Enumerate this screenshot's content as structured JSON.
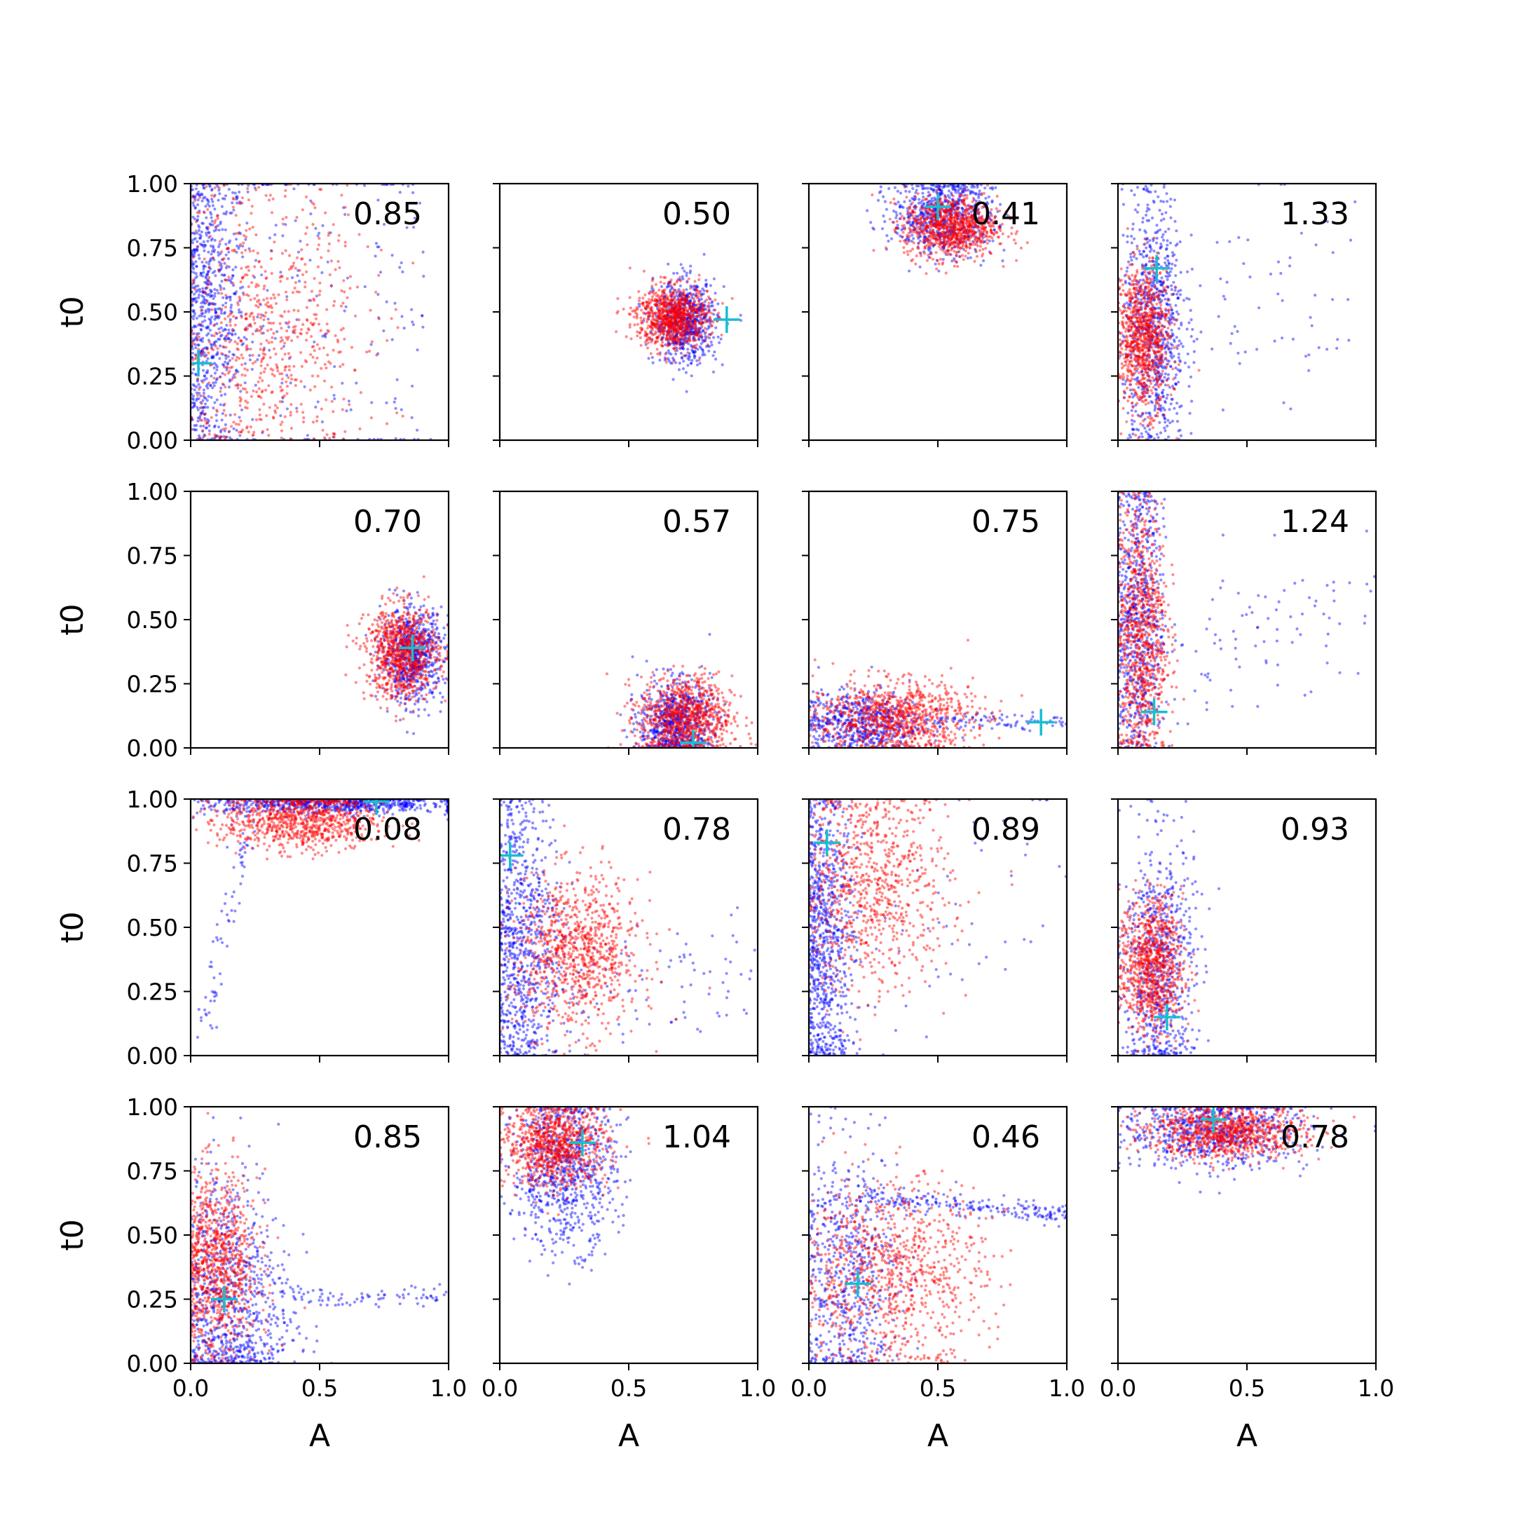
{
  "chart_data": {
    "type": "scatter",
    "layout": "4x4 grid of scatter panels",
    "xlabel": "A",
    "ylabel": "t0",
    "xlim": [
      0,
      1
    ],
    "ylim": [
      0,
      1
    ],
    "xticks": [
      "0.0",
      "0.5",
      "1.0"
    ],
    "yticks": [
      "0.00",
      "0.25",
      "0.50",
      "0.75",
      "1.00"
    ],
    "grid": false,
    "colors": {
      "series_a": "#0000ff",
      "series_b": "#ff0000",
      "marker": "#17becf"
    },
    "panels": [
      {
        "value": "0.85",
        "marker": [
          0.03,
          0.3
        ],
        "series_b": {
          "cx": 0.28,
          "cy": 0.42,
          "sx": 0.2,
          "sy": 0.28,
          "n": 700
        },
        "series_a": {
          "cx": 0.06,
          "cy": 0.5,
          "sx": 0.08,
          "sy": 0.3,
          "n": 700,
          "tail": [
            0.1,
            0.55,
            0.9,
            0.5,
            0.45,
            0.3
          ]
        }
      },
      {
        "value": "0.50",
        "marker": [
          0.88,
          0.47
        ],
        "series_b": {
          "cx": 0.67,
          "cy": 0.48,
          "sx": 0.07,
          "sy": 0.06,
          "n": 900
        },
        "series_a": {
          "cx": 0.72,
          "cy": 0.46,
          "sx": 0.06,
          "sy": 0.08,
          "n": 700
        }
      },
      {
        "value": "0.41",
        "marker": [
          0.5,
          0.91
        ],
        "series_b": {
          "cx": 0.55,
          "cy": 0.83,
          "sx": 0.09,
          "sy": 0.06,
          "n": 900
        },
        "series_a": {
          "cx": 0.52,
          "cy": 0.88,
          "sx": 0.1,
          "sy": 0.08,
          "n": 700
        }
      },
      {
        "value": "1.33",
        "marker": [
          0.15,
          0.67
        ],
        "series_b": {
          "cx": 0.1,
          "cy": 0.4,
          "sx": 0.05,
          "sy": 0.14,
          "n": 900
        },
        "series_a": {
          "cx": 0.14,
          "cy": 0.45,
          "sx": 0.06,
          "sy": 0.25,
          "n": 800,
          "tail": [
            0.25,
            0.52,
            0.9,
            0.56,
            0.22,
            0.08
          ]
        }
      },
      {
        "value": "0.70",
        "marker": [
          0.86,
          0.39
        ],
        "series_b": {
          "cx": 0.82,
          "cy": 0.37,
          "sx": 0.07,
          "sy": 0.09,
          "n": 900
        },
        "series_a": {
          "cx": 0.86,
          "cy": 0.36,
          "sx": 0.06,
          "sy": 0.09,
          "n": 700
        }
      },
      {
        "value": "0.57",
        "marker": [
          0.75,
          0.02
        ],
        "series_b": {
          "cx": 0.72,
          "cy": 0.12,
          "sx": 0.09,
          "sy": 0.08,
          "n": 900
        },
        "series_a": {
          "cx": 0.68,
          "cy": 0.1,
          "sx": 0.07,
          "sy": 0.08,
          "n": 700
        }
      },
      {
        "value": "0.75",
        "marker": [
          0.9,
          0.1
        ],
        "series_b": {
          "cx": 0.33,
          "cy": 0.12,
          "sx": 0.15,
          "sy": 0.07,
          "n": 900
        },
        "series_a": {
          "cx": 0.2,
          "cy": 0.1,
          "sx": 0.12,
          "sy": 0.06,
          "n": 600,
          "tail": [
            0.45,
            0.11,
            1.0,
            0.1,
            0.015,
            0.15
          ]
        }
      },
      {
        "value": "1.24",
        "marker": [
          0.14,
          0.14
        ],
        "series_b": {
          "cx": 0.09,
          "cy": 0.45,
          "sx": 0.05,
          "sy": 0.26,
          "n": 900
        },
        "series_a": {
          "cx": 0.08,
          "cy": 0.5,
          "sx": 0.05,
          "sy": 0.3,
          "n": 700,
          "tail": [
            0.25,
            0.35,
            1.0,
            0.58,
            0.15,
            0.12
          ]
        }
      },
      {
        "value": "0.08",
        "marker": [
          0.72,
          0.99
        ],
        "series_b": {
          "cx": 0.43,
          "cy": 0.92,
          "sx": 0.15,
          "sy": 0.06,
          "n": 900
        },
        "series_a": {
          "cx": 0.55,
          "cy": 0.98,
          "sx": 0.25,
          "sy": 0.02,
          "n": 700,
          "tail": [
            0.05,
            0.1,
            0.22,
            0.9,
            0.04,
            0.1
          ]
        }
      },
      {
        "value": "0.78",
        "marker": [
          0.04,
          0.78
        ],
        "series_b": {
          "cx": 0.3,
          "cy": 0.4,
          "sx": 0.12,
          "sy": 0.15,
          "n": 900
        },
        "series_a": {
          "cx": 0.08,
          "cy": 0.45,
          "sx": 0.08,
          "sy": 0.3,
          "n": 800,
          "tail": [
            0.3,
            0.25,
            1.0,
            0.35,
            0.12,
            0.1
          ]
        }
      },
      {
        "value": "0.89",
        "marker": [
          0.07,
          0.83
        ],
        "series_b": {
          "cx": 0.25,
          "cy": 0.65,
          "sx": 0.15,
          "sy": 0.2,
          "n": 800
        },
        "series_a": {
          "cx": 0.06,
          "cy": 0.45,
          "sx": 0.06,
          "sy": 0.3,
          "n": 800,
          "tail": [
            0.2,
            0.1,
            1.0,
            0.9,
            0.25,
            0.06
          ]
        }
      },
      {
        "value": "0.93",
        "marker": [
          0.19,
          0.15
        ],
        "series_b": {
          "cx": 0.13,
          "cy": 0.35,
          "sx": 0.06,
          "sy": 0.13,
          "n": 900
        },
        "series_a": {
          "cx": 0.16,
          "cy": 0.35,
          "sx": 0.07,
          "sy": 0.25,
          "n": 700
        }
      },
      {
        "value": "0.85",
        "marker": [
          0.13,
          0.25
        ],
        "series_b": {
          "cx": 0.1,
          "cy": 0.38,
          "sx": 0.08,
          "sy": 0.18,
          "n": 900
        },
        "series_a": {
          "cx": 0.15,
          "cy": 0.25,
          "sx": 0.12,
          "sy": 0.25,
          "n": 800,
          "tail": [
            0.35,
            0.26,
            1.0,
            0.26,
            0.02,
            0.1
          ]
        }
      },
      {
        "value": "1.04",
        "marker": [
          0.32,
          0.86
        ],
        "series_b": {
          "cx": 0.22,
          "cy": 0.85,
          "sx": 0.1,
          "sy": 0.08,
          "n": 900
        },
        "series_a": {
          "cx": 0.25,
          "cy": 0.75,
          "sx": 0.1,
          "sy": 0.15,
          "n": 800
        }
      },
      {
        "value": "0.46",
        "marker": [
          0.19,
          0.31
        ],
        "series_b": {
          "cx": 0.32,
          "cy": 0.35,
          "sx": 0.18,
          "sy": 0.18,
          "n": 900
        },
        "series_a": {
          "cx": 0.15,
          "cy": 0.35,
          "sx": 0.1,
          "sy": 0.25,
          "n": 600,
          "tail": [
            0.2,
            0.65,
            1.0,
            0.58,
            0.02,
            0.35
          ]
        }
      },
      {
        "value": "0.78",
        "marker": [
          0.37,
          0.95
        ],
        "series_b": {
          "cx": 0.42,
          "cy": 0.9,
          "sx": 0.15,
          "sy": 0.05,
          "n": 900
        },
        "series_a": {
          "cx": 0.38,
          "cy": 0.9,
          "sx": 0.18,
          "sy": 0.07,
          "n": 700
        }
      }
    ]
  }
}
